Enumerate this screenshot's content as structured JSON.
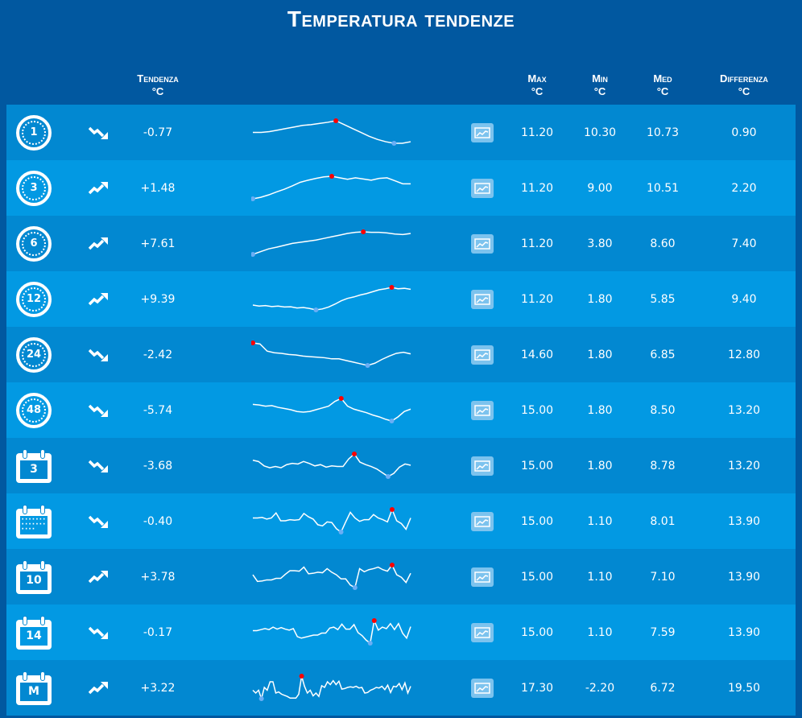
{
  "title": "Temperatura tendenze",
  "headers": {
    "tendenza": "Tendenza",
    "max": "Max",
    "min": "Min",
    "med": "Med",
    "diff": "Differenza",
    "unit": "°C"
  },
  "colors": {
    "max_dot": "#ff0000",
    "min_dot": "#6aaef5",
    "line": "#ffffff"
  },
  "rows": [
    {
      "period": "1",
      "icon": "clock-icon",
      "trend": "down",
      "tendenza": "-0.77",
      "max": "11.20",
      "min": "10.30",
      "med": "10.73",
      "diff": "0.90",
      "spark": [
        5,
        5,
        5.2,
        5.6,
        6,
        6.4,
        6.8,
        7,
        7.3,
        7.6,
        8,
        7,
        6,
        5,
        4,
        3.2,
        2.6,
        2.2,
        2.2,
        2.6
      ]
    },
    {
      "period": "3",
      "icon": "clock-icon",
      "trend": "up",
      "tendenza": "+1.48",
      "max": "11.20",
      "min": "9.00",
      "med": "10.51",
      "diff": "2.20",
      "spark": [
        1,
        1.5,
        2.3,
        3.3,
        4.2,
        5.3,
        6.5,
        7.2,
        7.8,
        8.3,
        8.5,
        8,
        7.5,
        8,
        7.6,
        7.2,
        7.8,
        8,
        7,
        6,
        6
      ]
    },
    {
      "period": "6",
      "icon": "clock-icon",
      "trend": "up",
      "tendenza": "+7.61",
      "max": "11.20",
      "min": "3.80",
      "med": "8.60",
      "diff": "7.40",
      "spark": [
        1,
        2,
        3,
        3.6,
        4.3,
        5,
        5.4,
        5.8,
        6.2,
        6.8,
        7.4,
        8,
        8.6,
        9,
        9.2,
        9,
        9,
        8.8,
        8.4,
        8.2,
        8.6
      ]
    },
    {
      "period": "12",
      "icon": "clock-icon",
      "trend": "up",
      "tendenza": "+9.39",
      "max": "11.20",
      "min": "1.80",
      "med": "5.85",
      "diff": "9.40",
      "spark": [
        3,
        2.6,
        2.8,
        2.4,
        2.6,
        2.2,
        2.3,
        1.8,
        2,
        1.6,
        1,
        1.4,
        2.2,
        3.4,
        4.8,
        5.8,
        6.4,
        7.2,
        7.8,
        8.6,
        9.4,
        9.8,
        10.4,
        9.8,
        10,
        9.6
      ]
    },
    {
      "period": "24",
      "icon": "clock-icon",
      "trend": "down",
      "tendenza": "-2.42",
      "max": "14.60",
      "min": "1.80",
      "med": "6.85",
      "diff": "12.80",
      "spark": [
        9,
        8.6,
        6,
        5.4,
        5.2,
        4.8,
        4.6,
        4.2,
        4,
        3.8,
        3.6,
        3.2,
        3.2,
        2.6,
        2,
        1.4,
        0.8,
        1.6,
        3,
        4.2,
        5.2,
        5.6,
        5
      ]
    },
    {
      "period": "48",
      "icon": "clock-icon",
      "trend": "down",
      "tendenza": "-5.74",
      "max": "15.00",
      "min": "1.80",
      "med": "8.50",
      "diff": "13.20",
      "spark": [
        6,
        5.8,
        5.4,
        5.6,
        5,
        4.6,
        4.2,
        3.6,
        3.4,
        3.6,
        4.2,
        4.8,
        5.4,
        7,
        8,
        5.4,
        4.4,
        3.8,
        3.2,
        2.4,
        1.8,
        1,
        0.4,
        1.8,
        3.6,
        4.4
      ]
    },
    {
      "period": "3",
      "icon": "calendar-icon",
      "trend": "down",
      "tendenza": "-3.68",
      "max": "15.00",
      "min": "1.80",
      "med": "8.78",
      "diff": "13.20",
      "spark": [
        6,
        5.6,
        4.2,
        3.6,
        4,
        3.6,
        4.6,
        5,
        4.8,
        5.6,
        5,
        4.2,
        4.6,
        3.8,
        4.2,
        4,
        4,
        6.4,
        8,
        5.4,
        4.6,
        4,
        3.2,
        2,
        0.8,
        1.8,
        3.8,
        4.8,
        4.4
      ]
    },
    {
      "period": "",
      "icon": "calendar-month-grid-icon",
      "trend": "down",
      "tendenza": "-0.40",
      "max": "15.00",
      "min": "1.10",
      "med": "8.01",
      "diff": "13.90",
      "spark": [
        6,
        6,
        6.2,
        5.6,
        6,
        7.8,
        5,
        5,
        5.4,
        5.2,
        5.4,
        7.6,
        6.4,
        5.6,
        3.6,
        3.2,
        4.6,
        4.4,
        2.2,
        1,
        4.6,
        8,
        6,
        4.8,
        5.4,
        5.4,
        7.2,
        6,
        5.4,
        4.6,
        9,
        5,
        4,
        2,
        6
      ]
    },
    {
      "period": "10",
      "icon": "calendar-icon",
      "trend": "up",
      "tendenza": "+3.78",
      "max": "15.00",
      "min": "1.10",
      "med": "7.10",
      "diff": "13.90",
      "spark": [
        6,
        3.4,
        3.6,
        4,
        4,
        4.6,
        4.6,
        6.2,
        7.6,
        7.6,
        7.4,
        9,
        6.4,
        6.6,
        7,
        6.8,
        8.4,
        7,
        6,
        4.4,
        4.4,
        2,
        1,
        8.4,
        7.2,
        8,
        8.4,
        9,
        8,
        7.4,
        9.8,
        6,
        5,
        3,
        6.6
      ]
    },
    {
      "period": "14",
      "icon": "calendar-icon",
      "trend": "down",
      "tendenza": "-0.17",
      "max": "15.00",
      "min": "1.10",
      "med": "7.59",
      "diff": "13.90",
      "spark": [
        6,
        6,
        6.4,
        6.8,
        6.4,
        7.4,
        6.6,
        7.2,
        6.6,
        6.2,
        6.8,
        3.6,
        3,
        3.4,
        3.8,
        4.2,
        4.2,
        5,
        5,
        7,
        7.4,
        6.4,
        8.6,
        6.6,
        6.6,
        8.4,
        5.2,
        4,
        2.2,
        1,
        10,
        6.2,
        7.4,
        6.8,
        8.8,
        6.4,
        8.8,
        5,
        3,
        7.6
      ]
    },
    {
      "period": "M",
      "icon": "calendar-icon",
      "trend": "up",
      "tendenza": "+3.22",
      "max": "17.30",
      "min": "-2.20",
      "med": "6.72",
      "diff": "19.50",
      "spark": [
        4,
        3,
        4,
        1,
        5,
        4,
        7,
        7,
        3,
        3.4,
        2.6,
        2.2,
        1.8,
        1.2,
        1.2,
        1.2,
        2.6,
        9,
        5.4,
        3,
        4,
        2,
        3,
        1.8,
        5.6,
        5,
        7,
        6,
        7.4,
        6,
        7.2,
        4.4,
        4.6,
        5,
        5.2,
        5,
        5.4,
        4.8,
        5,
        3,
        3.2,
        4,
        4.4,
        5,
        4.8,
        5.4,
        4.2,
        5.8,
        3.2,
        5.4,
        5.2,
        6.4,
        4.2,
        6.6,
        3,
        5.4
      ]
    }
  ]
}
